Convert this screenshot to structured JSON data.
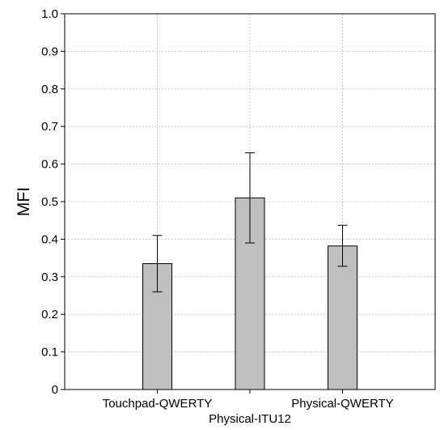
{
  "chart_data": {
    "type": "bar",
    "categories": [
      "Touchpad-QWERTY",
      "Physical-ITU12",
      "Physical-QWERTY"
    ],
    "values": [
      0.335,
      0.51,
      0.382
    ],
    "error_low": [
      0.26,
      0.39,
      0.328
    ],
    "error_high": [
      0.41,
      0.63,
      0.437
    ],
    "xlabel": "",
    "ylabel": "MFI",
    "ylim": [
      0,
      1.0
    ],
    "yticks": [
      "0",
      "0.1",
      "0.2",
      "0.3",
      "0.4",
      "0.5",
      "0.6",
      "0.7",
      "0.8",
      "0.9",
      "1.0"
    ],
    "grid": true,
    "bar_color": "#c0c0c0"
  }
}
